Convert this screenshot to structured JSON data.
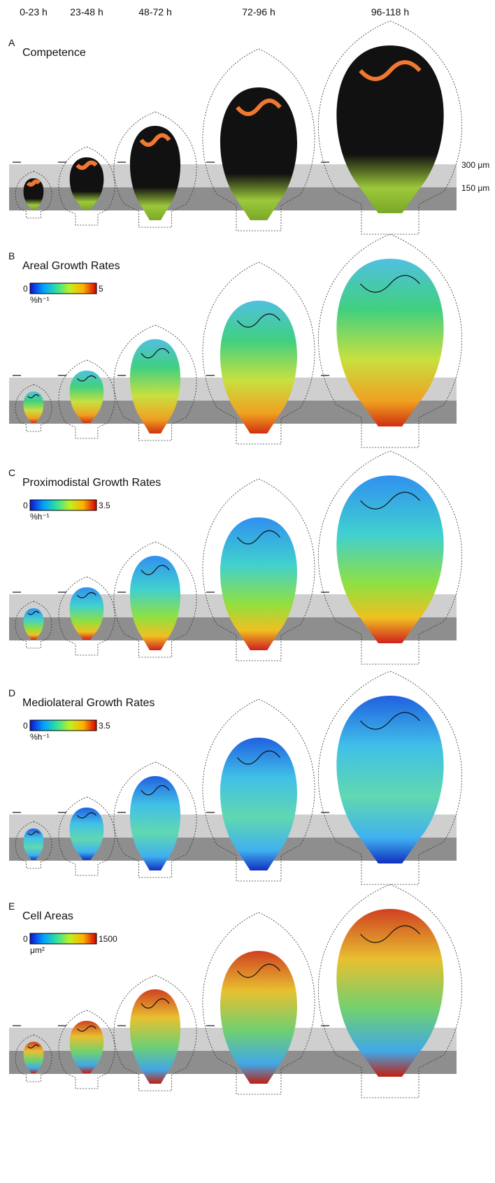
{
  "header": {
    "time_labels": [
      "0-23 h",
      "23-48 h",
      "48-72 h",
      "72-96 h",
      "96-118 h"
    ]
  },
  "panels": [
    {
      "letter": "A",
      "title": "Competence",
      "scale_labels": [
        "300 μm",
        "150 μm"
      ]
    },
    {
      "letter": "B",
      "title": "Areal Growth Rates",
      "scale_min": 0,
      "scale_max": 5,
      "unit": "%h⁻¹"
    },
    {
      "letter": "C",
      "title": "Proximodistal Growth Rates",
      "scale_min": 0,
      "scale_max": 3.5,
      "unit": "%h⁻¹"
    },
    {
      "letter": "D",
      "title": "Mediolateral Growth Rates",
      "scale_min": 0,
      "scale_max": 3.5,
      "unit": "%h⁻¹"
    },
    {
      "letter": "E",
      "title": "Cell Areas",
      "scale_min": 0,
      "scale_max": 1500,
      "unit": "μm²"
    }
  ]
}
